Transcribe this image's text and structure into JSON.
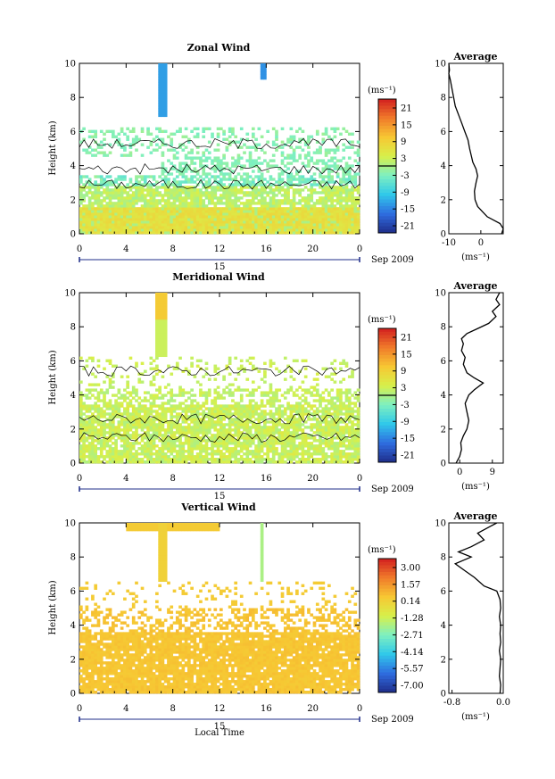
{
  "figure": {
    "xlabel": "Local Time",
    "ylabel": "Height (km)",
    "date_label": "Sep 2009",
    "day_label": "15",
    "unit_label": "(ms⁻¹)",
    "avg_title": "Average",
    "avg_xlabel": "(ms⁻¹)",
    "accent_colors": [
      "#1f2d8a",
      "#2f6de0",
      "#30c8ea",
      "#7ef0c0",
      "#d8f04a",
      "#f7c733",
      "#f07a2a",
      "#d21f1f"
    ]
  },
  "chart_data": [
    {
      "type": "heatmap",
      "title": "Zonal Wind",
      "xlabel": "",
      "ylabel": "Height (km)",
      "x_ticks": [
        "0",
        "4",
        "8",
        "12",
        "16",
        "20",
        "0"
      ],
      "x_range": [
        0,
        24
      ],
      "y_ticks": [
        "0",
        "2",
        "4",
        "6",
        "8",
        "10"
      ],
      "ylim": [
        0,
        10
      ],
      "colorbar": {
        "unit": "(ms⁻¹)",
        "labels": [
          "21",
          "15",
          "9",
          "3",
          "-3",
          "-9",
          "-15",
          "-21"
        ],
        "range": [
          -24,
          24
        ]
      },
      "average_profile": {
        "title": "Average",
        "xlabel": "(ms⁻¹)",
        "x_ticks": [
          "-10",
          "0"
        ],
        "xlim": [
          -10,
          7
        ],
        "y_ticks": [
          "0",
          "2",
          "4",
          "6",
          "8",
          "10"
        ],
        "ylim": [
          0,
          10
        ],
        "points": [
          [
            6.5,
            0
          ],
          [
            7,
            0.3
          ],
          [
            6,
            0.6
          ],
          [
            4,
            0.8
          ],
          [
            2,
            1.0
          ],
          [
            0.5,
            1.3
          ],
          [
            -1,
            1.6
          ],
          [
            -1.8,
            2.0
          ],
          [
            -2,
            2.5
          ],
          [
            -1.5,
            3.0
          ],
          [
            -1,
            3.4
          ],
          [
            -1.5,
            3.8
          ],
          [
            -2.5,
            4.2
          ],
          [
            -3,
            4.6
          ],
          [
            -3.5,
            5.0
          ],
          [
            -4,
            5.5
          ],
          [
            -5,
            6.0
          ],
          [
            -6,
            6.5
          ],
          [
            -7,
            7.0
          ],
          [
            -8,
            7.5
          ],
          [
            -8.5,
            8.0
          ],
          [
            -9,
            8.5
          ],
          [
            -9.5,
            9.0
          ],
          [
            -10,
            9.4
          ],
          [
            -9.8,
            9.6
          ],
          [
            -10,
            10.0
          ]
        ]
      }
    },
    {
      "type": "heatmap",
      "title": "Meridional Wind",
      "xlabel": "",
      "ylabel": "Height (km)",
      "x_ticks": [
        "0",
        "4",
        "8",
        "12",
        "16",
        "20",
        "0"
      ],
      "x_range": [
        0,
        24
      ],
      "y_ticks": [
        "0",
        "2",
        "4",
        "6",
        "8",
        "10"
      ],
      "ylim": [
        0,
        10
      ],
      "colorbar": {
        "unit": "(ms⁻¹)",
        "labels": [
          "21",
          "15",
          "9",
          "3",
          "-3",
          "-9",
          "-15",
          "-21"
        ],
        "range": [
          -24,
          24
        ]
      },
      "average_profile": {
        "title": "Average",
        "xlabel": "(ms⁻¹)",
        "x_ticks": [
          "0",
          "9"
        ],
        "xlim": [
          -3,
          12
        ],
        "y_ticks": [
          "0",
          "2",
          "4",
          "6",
          "8",
          "10"
        ],
        "ylim": [
          0,
          10
        ],
        "points": [
          [
            -1,
            0
          ],
          [
            0,
            0.4
          ],
          [
            0.5,
            0.8
          ],
          [
            0.3,
            1.2
          ],
          [
            1,
            1.6
          ],
          [
            2,
            2.0
          ],
          [
            2.5,
            2.5
          ],
          [
            2,
            3.0
          ],
          [
            1.5,
            3.5
          ],
          [
            2.5,
            4.0
          ],
          [
            4,
            4.3
          ],
          [
            6.5,
            4.7
          ],
          [
            4,
            5.0
          ],
          [
            2,
            5.3
          ],
          [
            1,
            5.8
          ],
          [
            1.5,
            6.2
          ],
          [
            0.5,
            6.6
          ],
          [
            1,
            7.0
          ],
          [
            0.5,
            7.3
          ],
          [
            2,
            7.6
          ],
          [
            5,
            7.9
          ],
          [
            8,
            8.2
          ],
          [
            10,
            8.6
          ],
          [
            9,
            8.9
          ],
          [
            11,
            9.3
          ],
          [
            10,
            9.6
          ],
          [
            11,
            10.0
          ]
        ]
      }
    },
    {
      "type": "heatmap",
      "title": "Vertical Wind",
      "xlabel": "Local Time",
      "ylabel": "Height (km)",
      "x_ticks": [
        "0",
        "4",
        "8",
        "12",
        "16",
        "20",
        "0"
      ],
      "x_range": [
        0,
        24
      ],
      "y_ticks": [
        "0",
        "2",
        "4",
        "6",
        "8",
        "10"
      ],
      "ylim": [
        0,
        10
      ],
      "colorbar": {
        "unit": "(ms⁻¹)",
        "labels": [
          "3.00",
          "1.57",
          "0.14",
          "-1.28",
          "-2.71",
          "-4.14",
          "-5.57",
          "-7.00"
        ],
        "range": [
          -7.7,
          3.7
        ]
      },
      "average_profile": {
        "title": "Average",
        "xlabel": "(ms⁻¹)",
        "x_ticks": [
          "-0.8",
          "0.0"
        ],
        "xlim": [
          -0.85,
          0.0
        ],
        "y_ticks": [
          "0",
          "2",
          "4",
          "6",
          "8",
          "10"
        ],
        "ylim": [
          0,
          10
        ],
        "points": [
          [
            -0.05,
            0
          ],
          [
            -0.04,
            0.5
          ],
          [
            -0.06,
            1.0
          ],
          [
            -0.05,
            1.5
          ],
          [
            -0.04,
            2.0
          ],
          [
            -0.06,
            2.5
          ],
          [
            -0.04,
            3.0
          ],
          [
            -0.05,
            3.5
          ],
          [
            -0.04,
            4.0
          ],
          [
            -0.06,
            4.5
          ],
          [
            -0.04,
            5.0
          ],
          [
            -0.05,
            5.5
          ],
          [
            -0.1,
            6.0
          ],
          [
            -0.3,
            6.3
          ],
          [
            -0.45,
            6.8
          ],
          [
            -0.6,
            7.2
          ],
          [
            -0.75,
            7.6
          ],
          [
            -0.5,
            8.0
          ],
          [
            -0.7,
            8.3
          ],
          [
            -0.5,
            8.6
          ],
          [
            -0.3,
            9.0
          ],
          [
            -0.4,
            9.4
          ],
          [
            -0.2,
            9.8
          ],
          [
            -0.1,
            10.0
          ]
        ]
      }
    }
  ]
}
